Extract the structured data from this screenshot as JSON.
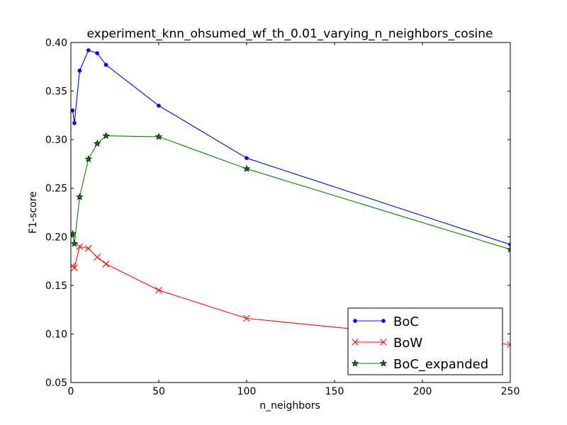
{
  "chart_data": {
    "type": "line",
    "title": "experiment_knn_ohsumed_wf_th_0.01_varying_n_neighbors_cosine",
    "xlabel": "n_neighbors",
    "ylabel": "F1-score",
    "xlim": [
      0,
      250
    ],
    "ylim": [
      0.05,
      0.4
    ],
    "xticks": [
      0,
      50,
      100,
      150,
      200,
      250
    ],
    "yticks": [
      0.05,
      0.1,
      0.15,
      0.2,
      0.25,
      0.3,
      0.35,
      0.4
    ],
    "xtick_labels": [
      "0",
      "50",
      "100",
      "150",
      "200",
      "250"
    ],
    "ytick_labels": [
      "0.05",
      "0.10",
      "0.15",
      "0.20",
      "0.25",
      "0.30",
      "0.35",
      "0.40"
    ],
    "grid": false,
    "legend_position": "lower-right",
    "series": [
      {
        "name": "BoC",
        "color": "#0000ff",
        "marker": "point",
        "x": [
          1,
          2,
          5,
          10,
          15,
          20,
          50,
          100,
          250
        ],
        "y": [
          0.33,
          0.317,
          0.371,
          0.392,
          0.389,
          0.377,
          0.335,
          0.281,
          0.192
        ]
      },
      {
        "name": "BoW",
        "color": "#ff0000",
        "marker": "x",
        "x": [
          1,
          2,
          5,
          10,
          15,
          20,
          50,
          100,
          250
        ],
        "y": [
          0.17,
          0.168,
          0.19,
          0.188,
          0.179,
          0.172,
          0.145,
          0.116,
          0.089
        ]
      },
      {
        "name": "BoC_expanded",
        "color": "#008000",
        "marker": "star",
        "x": [
          1,
          2,
          5,
          10,
          15,
          20,
          50,
          100,
          250
        ],
        "y": [
          0.203,
          0.193,
          0.241,
          0.28,
          0.296,
          0.304,
          0.303,
          0.27,
          0.187
        ]
      }
    ]
  }
}
